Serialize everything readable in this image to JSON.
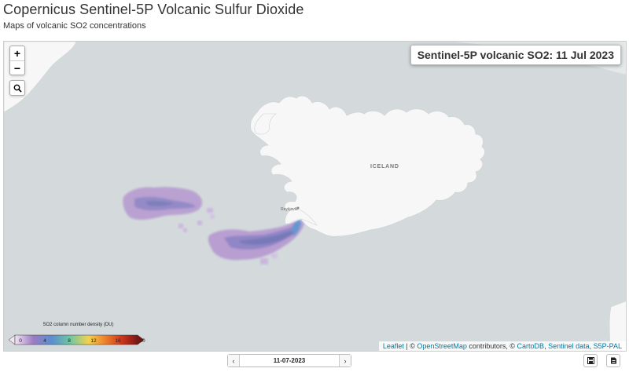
{
  "header": {
    "title": "Copernicus Sentinel-5P Volcanic Sulfur Dioxide",
    "subtitle": "Maps of volcanic SO2 concentrations"
  },
  "map": {
    "title": "Sentinel-5P volcanic SO2: 11 Jul 2023",
    "zoom_in_label": "+",
    "zoom_out_label": "−",
    "search_icon": "search-icon",
    "place_label": "ICELAND",
    "city_label": "Reykjavík",
    "colors": {
      "sea": "#d4dadc",
      "land": "#f7f7f7",
      "plume_low": "#b598d0",
      "plume_mid": "#6e6fb5"
    }
  },
  "legend": {
    "title": "SO2 column number density (DU)",
    "ticks": [
      "0",
      "4",
      "8",
      "12",
      "16",
      "20"
    ],
    "range": [
      0,
      20
    ],
    "colors": [
      "#f2e3f3",
      "#9b7cc3",
      "#5a8fcf",
      "#6fc6a2",
      "#f1d24e",
      "#f08a2c",
      "#d13b1e",
      "#7f1414"
    ]
  },
  "attribution": {
    "leaflet": "Leaflet",
    "sep1": " | © ",
    "osm": "OpenStreetMap",
    "mid": " contributors, © ",
    "carto": "CartoDB",
    "sep2": ", ",
    "sentinel": "Sentinel data",
    "sep3": ", ",
    "s5p": "S5P-PAL"
  },
  "date_nav": {
    "prev": "‹",
    "date": "11-07-2023",
    "next": "›"
  },
  "tools": {
    "save_icon": "save-icon",
    "download_icon": "download-icon"
  }
}
